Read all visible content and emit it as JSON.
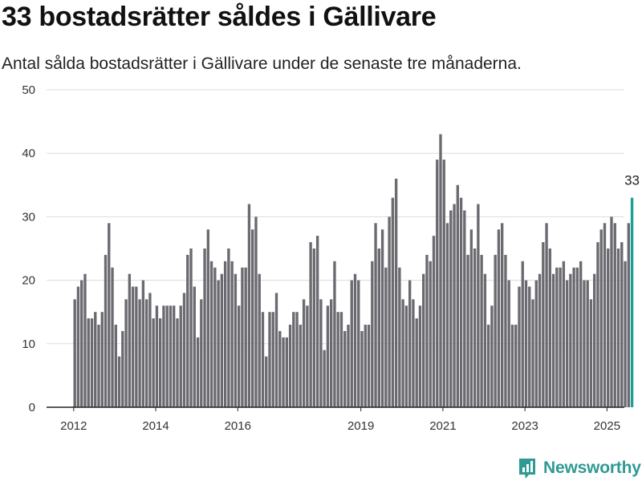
{
  "title": "33 bostadsrätter såldes i Gällivare",
  "subtitle": "Antal sålda bostadsrätter i Gällivare under de senaste tre månaderna.",
  "brand": "Newsworthy",
  "colors": {
    "bar": "#6b6a70",
    "highlight": "#1a9e95",
    "grid": "#dcdcdc",
    "axis": "#222222",
    "brand": "#2f9a93"
  },
  "chart_data": {
    "type": "bar",
    "title": "33 bostadsrätter såldes i Gällivare",
    "subtitle": "Antal sålda bostadsrätter i Gällivare under de senaste tre månaderna.",
    "xlabel": "",
    "ylabel": "",
    "ylim": [
      0,
      50
    ],
    "yticks": [
      0,
      10,
      20,
      30,
      40,
      50
    ],
    "xticks": [
      "2012",
      "2014",
      "2016",
      "2019",
      "2021",
      "2023",
      "2025"
    ],
    "grid": true,
    "x_start": "2012-01",
    "x_end": "2025-08",
    "highlight_label": "33",
    "values": [
      17,
      19,
      20,
      21,
      14,
      14,
      15,
      13,
      15,
      24,
      29,
      22,
      13,
      8,
      12,
      17,
      21,
      19,
      19,
      17,
      20,
      17,
      18,
      14,
      16,
      14,
      16,
      16,
      16,
      16,
      14,
      16,
      18,
      24,
      25,
      19,
      11,
      17,
      25,
      28,
      23,
      22,
      20,
      21,
      23,
      25,
      23,
      21,
      16,
      22,
      22,
      32,
      28,
      30,
      21,
      15,
      8,
      15,
      15,
      18,
      12,
      11,
      11,
      13,
      15,
      15,
      13,
      17,
      16,
      26,
      25,
      27,
      17,
      9,
      16,
      17,
      23,
      15,
      15,
      12,
      13,
      20,
      21,
      20,
      12,
      13,
      13,
      23,
      29,
      25,
      28,
      22,
      30,
      33,
      36,
      22,
      17,
      16,
      20,
      17,
      14,
      16,
      21,
      24,
      23,
      27,
      39,
      43,
      39,
      29,
      31,
      32,
      35,
      33,
      31,
      24,
      28,
      25,
      32,
      24,
      21,
      13,
      16,
      24,
      28,
      29,
      24,
      20,
      13,
      13,
      19,
      23,
      20,
      19,
      17,
      20,
      21,
      26,
      29,
      25,
      21,
      22,
      22,
      23,
      20,
      21,
      22,
      22,
      23,
      20,
      20,
      17,
      21,
      26,
      28,
      29,
      25,
      30,
      29,
      25,
      26,
      23,
      29,
      33
    ]
  }
}
